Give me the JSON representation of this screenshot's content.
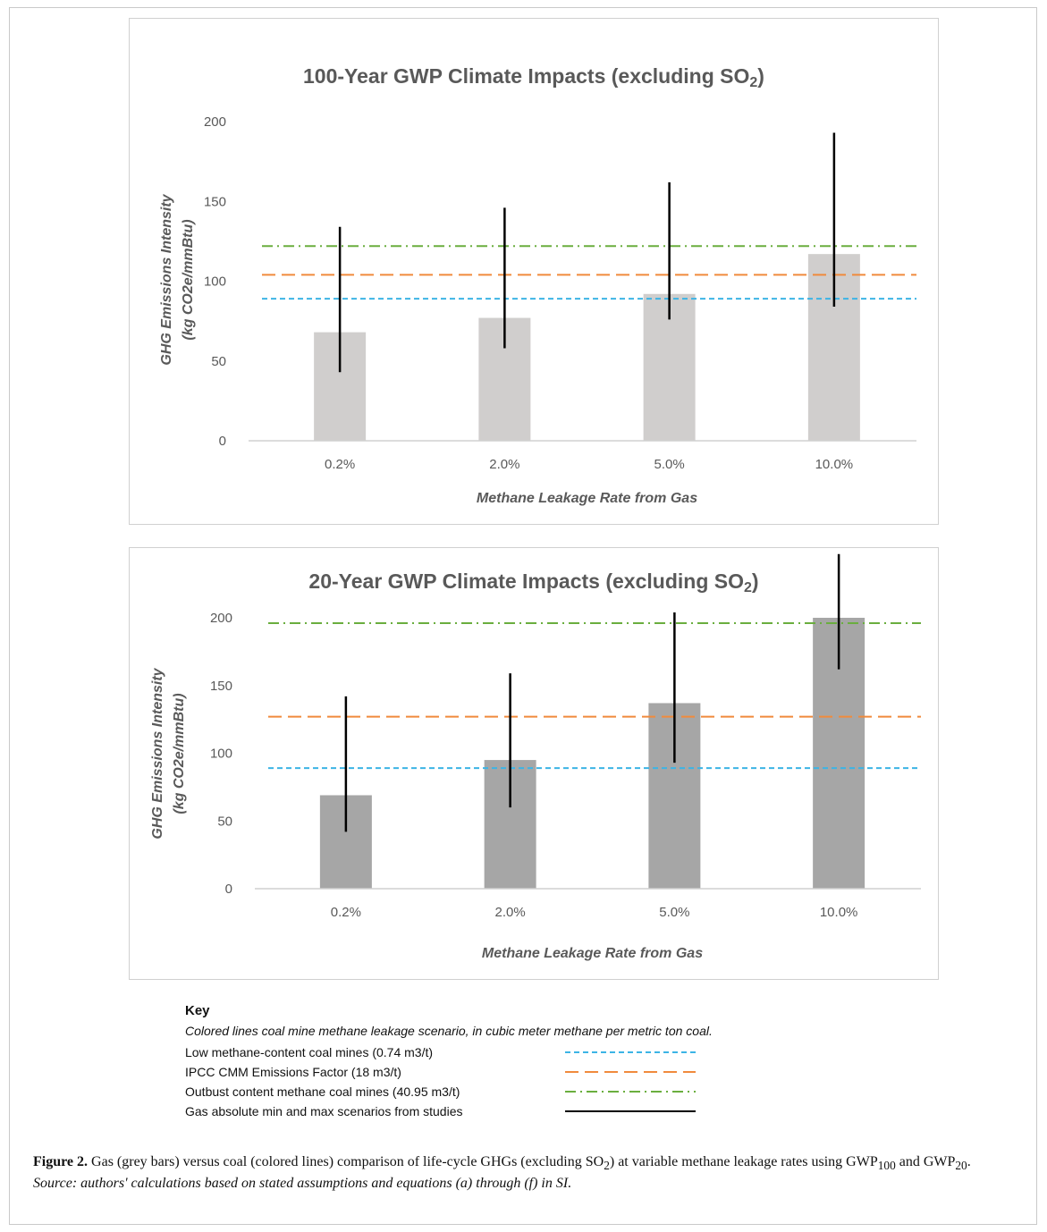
{
  "chart_data": [
    {
      "type": "bar",
      "title": "100-Year GWP Climate Impacts (excluding SO2)",
      "title_main": "100-Year GWP Climate Impacts (excluding SO",
      "title_sub": "2",
      "title_end": ")",
      "xlabel": "Methane Leakage Rate from Gas",
      "ylabel_line1": "GHG Emissions Intensity",
      "ylabel_line2": "(kg CO2e/mmBtu)",
      "ylim": [
        0,
        200
      ],
      "yticks": [
        0,
        50,
        100,
        150,
        200
      ],
      "categories": [
        "0.2%",
        "2.0%",
        "5.0%",
        "10.0%"
      ],
      "values": [
        68,
        77,
        92,
        117
      ],
      "ranges": [
        [
          43,
          134
        ],
        [
          58,
          146
        ],
        [
          76,
          162
        ],
        [
          84,
          193
        ]
      ],
      "bar_color": "#d0cecd",
      "lines": [
        {
          "name": "Low methane-content coal mines (0.74 m3/t)",
          "value": 89,
          "color": "#3cb4e5",
          "style": "short-dash"
        },
        {
          "name": "IPCC CMM Emissions Factor (18 m3/t)",
          "value": 104,
          "color": "#f08a3c",
          "style": "long-dash"
        },
        {
          "name": "Outbust content methane coal mines (40.95 m3/t)",
          "value": 122,
          "color": "#6aae3e",
          "style": "dash-dot"
        }
      ],
      "grid": false
    },
    {
      "type": "bar",
      "title": "20-Year GWP Climate Impacts (excluding SO2)",
      "title_main": "20-Year GWP Climate Impacts (excluding SO",
      "title_sub": "2",
      "title_end": ")",
      "xlabel": "Methane Leakage Rate from Gas",
      "ylabel_line1": "GHG Emissions Intensity",
      "ylabel_line2": "(kg CO2e/mmBtu)",
      "ylim": [
        0,
        200
      ],
      "yticks": [
        0,
        50,
        100,
        150,
        200
      ],
      "categories": [
        "0.2%",
        "2.0%",
        "5.0%",
        "10.0%"
      ],
      "values": [
        69,
        95,
        137,
        200
      ],
      "ranges": [
        [
          42,
          142
        ],
        [
          60,
          159
        ],
        [
          93,
          204
        ],
        [
          162,
          247
        ]
      ],
      "bar_color": "#a6a6a6",
      "lines": [
        {
          "name": "Low methane-content coal mines (0.74 m3/t)",
          "value": 89,
          "color": "#3cb4e5",
          "style": "short-dash"
        },
        {
          "name": "IPCC CMM Emissions Factor (18 m3/t)",
          "value": 127,
          "color": "#f08a3c",
          "style": "long-dash"
        },
        {
          "name": "Outbust content methane coal mines (40.95 m3/t)",
          "value": 196,
          "color": "#6aae3e",
          "style": "dash-dot"
        }
      ],
      "grid": false
    }
  ],
  "key": {
    "title": "Key",
    "description": "Colored lines coal mine methane leakage scenario, in cubic meter methane per metric ton coal.",
    "items": [
      {
        "label": "Low methane-content coal mines (0.74 m3/t)",
        "color": "#3cb4e5",
        "style": "short-dash"
      },
      {
        "label": "IPCC CMM Emissions Factor (18 m3/t)",
        "color": "#f08a3c",
        "style": "long-dash"
      },
      {
        "label": "Outbust content methane coal mines (40.95 m3/t)",
        "color": "#6aae3e",
        "style": "dash-dot"
      },
      {
        "label": "Gas absolute min and max scenarios from studies",
        "color": "#000000",
        "style": "solid"
      }
    ]
  },
  "caption": {
    "label": "Figure 2.",
    "text_a": " Gas (grey bars) versus coal (colored lines) comparison of life-cycle GHGs (excluding SO",
    "so_sub": "2",
    "text_b": ") at variable methane leakage rates using GWP",
    "gwp1_sub": "100",
    "text_c": " and GWP",
    "gwp2_sub": "20",
    "text_d": ".",
    "source": "Source: authors' calculations based on stated assumptions and equations (a) through (f) in SI."
  }
}
